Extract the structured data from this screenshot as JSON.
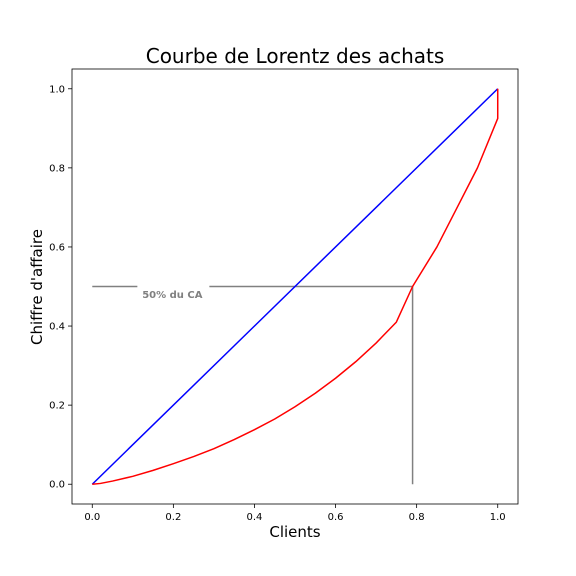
{
  "chart_data": {
    "type": "line",
    "title": "Courbe de Lorentz des achats",
    "xlabel": "Clients",
    "ylabel": "Chiffre d'affaire",
    "xlim": [
      -0.05,
      1.05
    ],
    "ylim": [
      -0.05,
      1.05
    ],
    "xticks": [
      0.0,
      0.2,
      0.4,
      0.6,
      0.8,
      1.0
    ],
    "yticks": [
      0.0,
      0.2,
      0.4,
      0.6,
      0.8,
      1.0
    ],
    "xtick_labels": [
      "0.0",
      "0.2",
      "0.4",
      "0.6",
      "0.8",
      "1.0"
    ],
    "ytick_labels": [
      "0.0",
      "0.2",
      "0.4",
      "0.6",
      "0.8",
      "1.0"
    ],
    "grid": false,
    "series": [
      {
        "color": "#0000ff",
        "x": [
          0.0,
          1.0
        ],
        "y": [
          0.0,
          1.0
        ]
      },
      {
        "color": "#ff0000",
        "x": [
          0.0,
          0.02,
          0.05,
          0.1,
          0.15,
          0.2,
          0.25,
          0.3,
          0.35,
          0.4,
          0.45,
          0.5,
          0.55,
          0.6,
          0.65,
          0.7,
          0.75,
          0.79,
          0.85,
          0.9,
          0.95,
          1.0,
          1.0
        ],
        "y": [
          0.0,
          0.002,
          0.008,
          0.02,
          0.035,
          0.052,
          0.07,
          0.09,
          0.113,
          0.138,
          0.165,
          0.196,
          0.23,
          0.268,
          0.31,
          0.357,
          0.41,
          0.5,
          0.6,
          0.7,
          0.8,
          0.925,
          1.0
        ]
      }
    ],
    "annotation": {
      "text": "50% du CA",
      "color": "#808080",
      "hline": {
        "y": 0.5,
        "x_from": 0.0,
        "x_to": 0.79
      },
      "vline": {
        "x": 0.79,
        "y_from": 0.0,
        "y_to": 0.5
      },
      "label_x": 0.2,
      "label_y": 0.48
    }
  }
}
